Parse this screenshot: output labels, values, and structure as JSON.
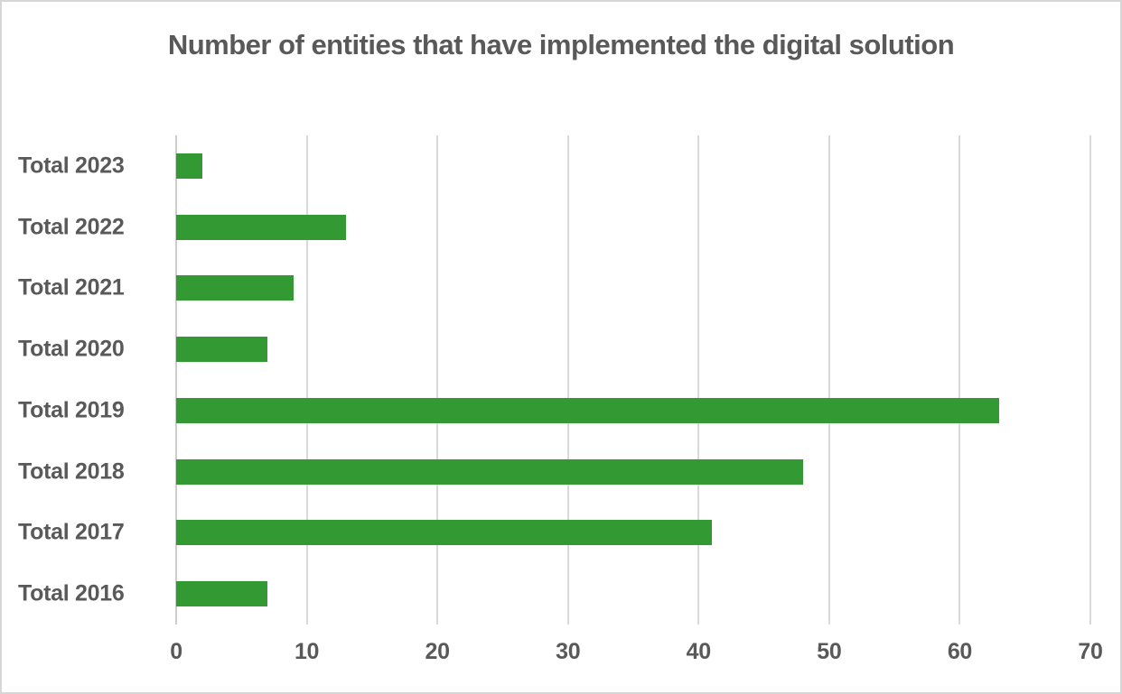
{
  "chart_data": {
    "type": "bar",
    "orientation": "horizontal",
    "title": "Number of entities that have implemented the digital solution",
    "categories": [
      "Total 2023",
      "Total 2022",
      "Total 2021",
      "Total 2020",
      "Total 2019",
      "Total 2018",
      "Total 2017",
      "Total 2016"
    ],
    "values": [
      2,
      13,
      9,
      7,
      63,
      48,
      41,
      7
    ],
    "xlabel": "",
    "ylabel": "",
    "xlim": [
      0,
      70
    ],
    "xticks": [
      0,
      10,
      20,
      30,
      40,
      50,
      60,
      70
    ],
    "grid": "vertical",
    "legend": false
  },
  "colors": {
    "bar_green": "#339933",
    "text_gray": "#595959",
    "gridline_gray": "#d9d9d9",
    "axis_line_gray": "#cccccc",
    "background": "#ffffff"
  }
}
